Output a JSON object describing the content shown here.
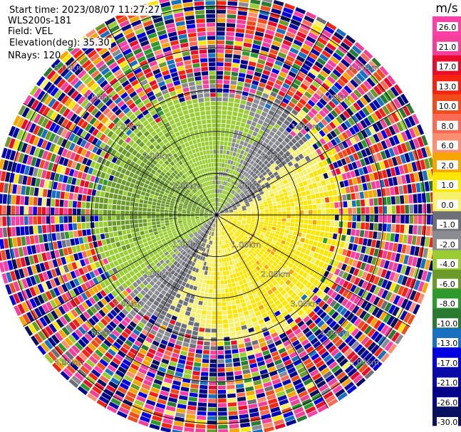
{
  "header": {
    "start_time": "Start time: 2023/08/07 11:27:27",
    "instrument": "WLS200s-181",
    "field": "Field: VEL",
    "elevation": "Elevation(deg): 35.30",
    "nrays": "NRays: 120"
  },
  "chart_data": {
    "type": "heatmap",
    "projection": "polar PPI (plan position indicator)",
    "field": "VEL",
    "units": "m/s",
    "n_rays": 120,
    "elevation_deg": 35.3,
    "range_rings_km": [
      1.0,
      2.0,
      3.0,
      4.0,
      5.0
    ],
    "range_ring_labels": [
      "1.00km",
      "2.00km",
      "3.00km",
      "4.00km",
      "5.00km"
    ],
    "range_ring_label_azimuths_deg": [
      45,
      135,
      225,
      315
    ],
    "max_range_km": 5.35,
    "spoke_azimuths_deg": [
      0,
      30,
      60,
      90,
      120,
      150,
      180,
      210,
      240,
      270,
      300,
      330
    ],
    "colorbar": {
      "title": "m/s",
      "tick_labels": [
        "26.0",
        "21.0",
        "17.0",
        "13.0",
        "10.0",
        "8.0",
        "6.0",
        "2.0",
        "1.0",
        "0.0",
        "-1.0",
        "-2.0",
        "-4.0",
        "-6.0",
        "-8.0",
        "-10.0",
        "-13.0",
        "-17.0",
        "-21.0",
        "-26.0",
        "-30.0"
      ],
      "bins": [
        {
          "min": 26,
          "max": 30,
          "color": "#ff3fa8"
        },
        {
          "min": 21,
          "max": 26,
          "color": "#f2409a"
        },
        {
          "min": 17,
          "max": 21,
          "color": "#e80d2a"
        },
        {
          "min": 13,
          "max": 17,
          "color": "#f52410"
        },
        {
          "min": 10,
          "max": 13,
          "color": "#f04c1c"
        },
        {
          "min": 8,
          "max": 10,
          "color": "#fa6a54"
        },
        {
          "min": 6,
          "max": 8,
          "color": "#fb8f70"
        },
        {
          "min": 2,
          "max": 6,
          "color": "#f7a600"
        },
        {
          "min": 1,
          "max": 2,
          "color": "#ffe600"
        },
        {
          "min": 0,
          "max": 1,
          "color": "#f6f06a"
        },
        {
          "min": -1,
          "max": 0,
          "color": "#6e7078"
        },
        {
          "min": -2,
          "max": -1,
          "color": "#8a8c92"
        },
        {
          "min": -4,
          "max": -2,
          "color": "#9acd32"
        },
        {
          "min": -6,
          "max": -4,
          "color": "#6b9a2a"
        },
        {
          "min": -8,
          "max": -6,
          "color": "#2e9a2e"
        },
        {
          "min": -10,
          "max": -8,
          "color": "#2a7a32"
        },
        {
          "min": -13,
          "max": -10,
          "color": "#1a70c0"
        },
        {
          "min": -17,
          "max": -13,
          "color": "#0000e0"
        },
        {
          "min": -21,
          "max": -17,
          "color": "#0a0aa8"
        },
        {
          "min": -26,
          "max": -21,
          "color": "#00008a"
        },
        {
          "min": -30,
          "max": -26,
          "color": "#081060"
        }
      ]
    },
    "pattern": {
      "near_center_km": "mostly -1 to -8 m/s (grey/green), small yellow core",
      "ring_1_to_3_km_north_west": "greens -2 to -6 m/s",
      "ring_1_to_3_km_south_east": "yellows 0 to 2 m/s",
      "grey_band": "about -1 to 0 m/s separating green and yellow zones",
      "beyond_3_km": "noisy values spanning the full -30 to 30 m/s scale"
    },
    "profile_azimuths_deg": [
      0,
      30,
      60,
      90,
      120,
      150,
      180,
      210,
      240,
      270,
      300,
      330
    ],
    "profile_ranges_km": [
      0.5,
      1.5,
      2.5,
      3.5
    ],
    "profile_velocity_ms": [
      [
        -2.0,
        -3.0,
        -1.0,
        1.0,
        1.5,
        1.0,
        0.5,
        -0.5,
        -2.5,
        -4.0,
        -4.5,
        -3.5
      ],
      [
        -2.5,
        -1.5,
        0.5,
        1.5,
        1.5,
        1.5,
        1.0,
        -0.5,
        -3.0,
        -4.5,
        -4.5,
        -3.5
      ],
      [
        -3.0,
        -2.0,
        0.5,
        1.5,
        1.5,
        1.5,
        1.0,
        -0.5,
        -3.0,
        -4.5,
        -4.5,
        -3.5
      ],
      [
        -0.5,
        0.5,
        1.5,
        1.5,
        1.0,
        0.5,
        -1.0,
        -2.0,
        -3.0,
        -3.5,
        -3.0,
        -1.5
      ]
    ]
  }
}
